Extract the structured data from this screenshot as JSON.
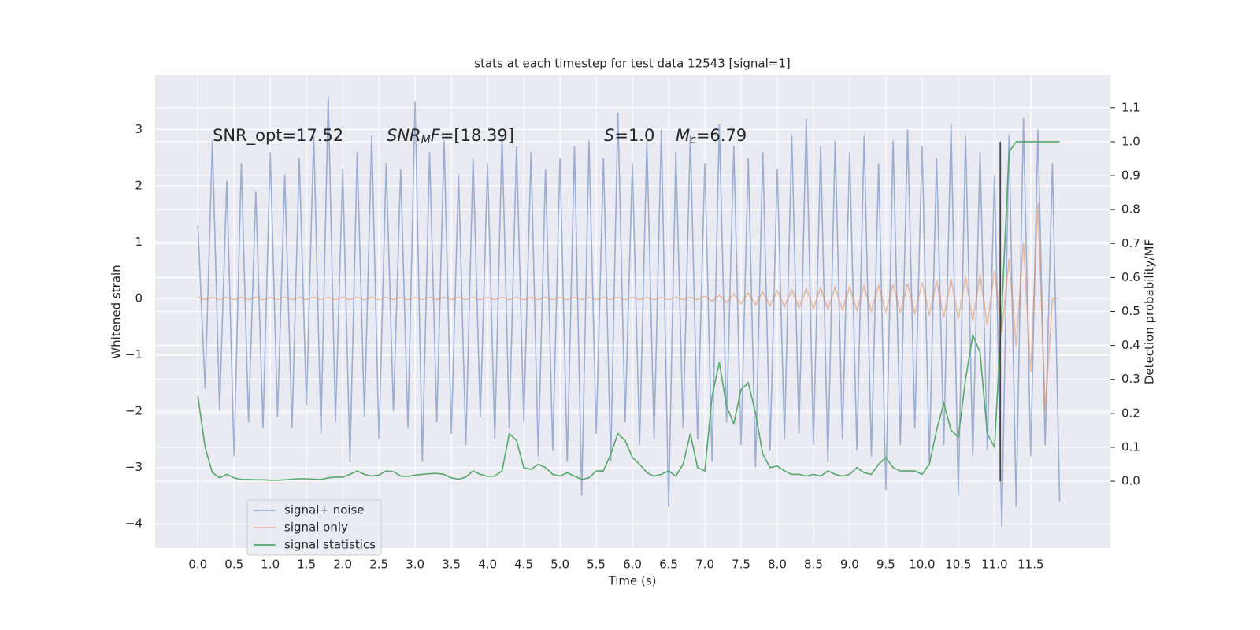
{
  "chart_data": {
    "type": "line",
    "title": "stats at each timestep for test data 12543 [signal=1]",
    "xlabel": "Time (s)",
    "ylabel": "Whitened strain",
    "y2label": "Detection probability/MF",
    "x": [
      0,
      0.1,
      0.2,
      0.3,
      0.4,
      0.5,
      0.6,
      0.7,
      0.8,
      0.9,
      1,
      1.1,
      1.2,
      1.3,
      1.4,
      1.5,
      1.6,
      1.7,
      1.8,
      1.9,
      2,
      2.1,
      2.2,
      2.3,
      2.4,
      2.5,
      2.6,
      2.7,
      2.8,
      2.9,
      3,
      3.1,
      3.2,
      3.3,
      3.4,
      3.5,
      3.6,
      3.7,
      3.8,
      3.9,
      4,
      4.1,
      4.2,
      4.3,
      4.4,
      4.5,
      4.6,
      4.7,
      4.8,
      4.9,
      5,
      5.1,
      5.2,
      5.3,
      5.4,
      5.5,
      5.6,
      5.7,
      5.8,
      5.9,
      6,
      6.1,
      6.2,
      6.3,
      6.4,
      6.5,
      6.6,
      6.7,
      6.8,
      6.9,
      7,
      7.1,
      7.2,
      7.3,
      7.4,
      7.5,
      7.6,
      7.7,
      7.8,
      7.9,
      8,
      8.1,
      8.2,
      8.3,
      8.4,
      8.5,
      8.6,
      8.7,
      8.8,
      8.9,
      9,
      9.1,
      9.2,
      9.3,
      9.4,
      9.5,
      9.6,
      9.7,
      9.8,
      9.9,
      10,
      10.1,
      10.2,
      10.3,
      10.4,
      10.5,
      10.6,
      10.7,
      10.8,
      10.9,
      11,
      11.1,
      11.2,
      11.3,
      11.4,
      11.5,
      11.6,
      11.7,
      11.8,
      11.9
    ],
    "series": [
      {
        "name": "signal+ noise",
        "color": "#4c72b0",
        "opacity": 0.5,
        "values": [
          1.3,
          -1.6,
          2.8,
          -2.0,
          2.1,
          -2.8,
          2.4,
          -2.2,
          1.9,
          -2.3,
          2.6,
          -2.1,
          2.2,
          -2.3,
          2.5,
          -1.9,
          2.9,
          -2.4,
          3.6,
          -2.2,
          2.3,
          -2.9,
          2.6,
          -2.1,
          2.9,
          -2.5,
          2.4,
          -2.0,
          2.3,
          -2.3,
          3.5,
          -2.9,
          2.6,
          -2.2,
          2.8,
          -2.4,
          2.2,
          -2.6,
          2.5,
          -2.1,
          2.4,
          -2.5,
          2.9,
          -2.3,
          2.7,
          -2.2,
          2.6,
          -2.8,
          2.3,
          -2.7,
          2.5,
          -2.9,
          2.7,
          -3.5,
          2.8,
          -2.4,
          2.5,
          -2.9,
          3.3,
          -2.2,
          2.4,
          -2.6,
          2.8,
          -2.5,
          3.0,
          -3.7,
          2.6,
          -2.3,
          2.9,
          -2.5,
          2.4,
          -2.9,
          3.1,
          -2.2,
          2.7,
          -2.6,
          2.5,
          -3.0,
          2.6,
          -2.7,
          2.3,
          -2.5,
          2.9,
          -2.4,
          3.2,
          -2.6,
          2.7,
          -2.9,
          2.8,
          -2.5,
          2.6,
          -2.7,
          2.9,
          -2.8,
          2.4,
          -3.4,
          2.8,
          -2.6,
          3.0,
          -2.3,
          2.7,
          -2.9,
          2.5,
          -2.6,
          3.1,
          -3.5,
          2.9,
          -2.8,
          2.6,
          -2.7,
          2.2,
          -4.05,
          2.9,
          -3.7,
          3.2,
          -2.8,
          3.0,
          -2.6,
          2.4,
          -3.6
        ]
      },
      {
        "name": "signal only",
        "color": "#dd8452",
        "opacity": 0.5,
        "values": [
          0.02,
          -0.02,
          0.02,
          -0.02,
          0.02,
          -0.02,
          0.02,
          -0.02,
          0.02,
          -0.02,
          0.02,
          -0.02,
          0.02,
          -0.02,
          0.02,
          -0.02,
          0.02,
          -0.02,
          0.02,
          -0.02,
          0.02,
          -0.02,
          0.02,
          -0.02,
          0.02,
          -0.02,
          0.02,
          -0.02,
          0.02,
          -0.02,
          0.02,
          -0.02,
          0.02,
          -0.02,
          0.02,
          -0.02,
          0.02,
          -0.02,
          0.02,
          -0.02,
          0.02,
          -0.02,
          0.02,
          -0.02,
          0.02,
          -0.02,
          0.02,
          -0.02,
          0.02,
          -0.02,
          0.02,
          -0.02,
          0.02,
          -0.02,
          0.02,
          -0.02,
          0.02,
          -0.02,
          0.02,
          -0.02,
          0.02,
          -0.02,
          0.02,
          -0.02,
          0.02,
          -0.02,
          0.02,
          -0.02,
          0.02,
          -0.02,
          0.04,
          -0.05,
          0.06,
          -0.07,
          0.08,
          -0.09,
          0.1,
          -0.11,
          0.12,
          -0.13,
          0.14,
          -0.15,
          0.16,
          -0.17,
          0.18,
          -0.18,
          0.19,
          -0.2,
          0.2,
          -0.21,
          0.21,
          -0.22,
          0.22,
          -0.23,
          0.23,
          -0.24,
          0.25,
          -0.26,
          0.27,
          -0.28,
          0.29,
          -0.3,
          0.31,
          -0.33,
          0.35,
          -0.37,
          0.39,
          -0.41,
          0.44,
          -0.47,
          0.5,
          -0.6,
          0.7,
          -0.85,
          1.0,
          -1.3,
          1.7,
          -2.0,
          0,
          0
        ]
      },
      {
        "name": "signal statistics",
        "color": "#55a868",
        "opacity": 1,
        "axis": "y2",
        "values": [
          0.25,
          0.1,
          0.025,
          0.01,
          0.02,
          0.01,
          0.005,
          0.005,
          0.004,
          0.004,
          0.003,
          0.003,
          0.004,
          0.006,
          0.007,
          0.007,
          0.006,
          0.005,
          0.01,
          0.012,
          0.012,
          0.02,
          0.03,
          0.02,
          0.015,
          0.018,
          0.03,
          0.028,
          0.015,
          0.014,
          0.018,
          0.02,
          0.022,
          0.023,
          0.02,
          0.01,
          0.006,
          0.012,
          0.03,
          0.02,
          0.014,
          0.015,
          0.03,
          0.14,
          0.12,
          0.04,
          0.035,
          0.05,
          0.04,
          0.02,
          0.015,
          0.025,
          0.015,
          0.005,
          0.01,
          0.03,
          0.03,
          0.08,
          0.14,
          0.12,
          0.07,
          0.05,
          0.025,
          0.015,
          0.02,
          0.03,
          0.015,
          0.05,
          0.14,
          0.04,
          0.03,
          0.25,
          0.35,
          0.22,
          0.17,
          0.27,
          0.29,
          0.2,
          0.08,
          0.04,
          0.045,
          0.03,
          0.02,
          0.02,
          0.015,
          0.02,
          0.015,
          0.03,
          0.02,
          0.015,
          0.02,
          0.04,
          0.025,
          0.02,
          0.05,
          0.07,
          0.04,
          0.03,
          0.03,
          0.03,
          0.02,
          0.05,
          0.15,
          0.23,
          0.15,
          0.13,
          0.3,
          0.43,
          0.38,
          0.14,
          0.1,
          0.5,
          0.97,
          1,
          1,
          1,
          1,
          1,
          1,
          1
        ]
      }
    ],
    "vlines": [
      {
        "x": 11.08,
        "ymin": 0,
        "ymax": 1,
        "axis": "y2",
        "color": "#444444"
      }
    ],
    "annotations": [
      [
        {
          "text": "SNR_opt=17.52"
        }
      ],
      [
        {
          "text": "SNR",
          "style": "italic"
        },
        {
          "text": "M",
          "style": "italic-sub"
        },
        {
          "text": "F",
          "style": "italic"
        },
        {
          "text": "=[18.39]"
        }
      ],
      [
        {
          "text": "S",
          "style": "italic"
        },
        {
          "text": "=1.0"
        }
      ],
      [
        {
          "text": "M",
          "style": "italic"
        },
        {
          "text": "c",
          "style": "italic-sub"
        },
        {
          "text": "=6.79"
        }
      ]
    ],
    "xlim": [
      -0.59,
      12.6
    ],
    "ylim": [
      -4.43,
      3.97
    ],
    "y2lim": [
      -0.197,
      1.197
    ],
    "xticks": [
      {
        "value": 0,
        "label": "0.0"
      },
      0.5,
      {
        "value": 1,
        "label": "1.0"
      },
      1.5,
      {
        "value": 2,
        "label": "2.0"
      },
      2.5,
      {
        "value": 3,
        "label": "3.0"
      },
      3.5,
      {
        "value": 4,
        "label": "4.0"
      },
      4.5,
      {
        "value": 5,
        "label": "5.0"
      },
      5.5,
      {
        "value": 6,
        "label": "6.0"
      },
      6.5,
      {
        "value": 7,
        "label": "7.0"
      },
      7.5,
      {
        "value": 8,
        "label": "8.0"
      },
      8.5,
      {
        "value": 9,
        "label": "9.0"
      },
      9.5,
      {
        "value": 10,
        "label": "10.0"
      },
      10.5,
      {
        "value": 11,
        "label": "11.0"
      },
      11.5
    ],
    "yticks": [
      {
        "value": -4,
        "label": "−4"
      },
      {
        "value": -3,
        "label": "−3"
      },
      {
        "value": -2,
        "label": "−2"
      },
      {
        "value": -1,
        "label": "−1"
      },
      0,
      1,
      2,
      3
    ],
    "y2ticks": [
      {
        "value": 0,
        "label": "0.0"
      },
      0.1,
      0.2,
      0.3,
      0.4,
      0.5,
      0.6,
      0.7,
      0.8,
      0.9,
      {
        "value": 1,
        "label": "1.0"
      },
      1.1
    ],
    "grid": true,
    "legend": "lower left",
    "background": "#eaeaf2"
  }
}
